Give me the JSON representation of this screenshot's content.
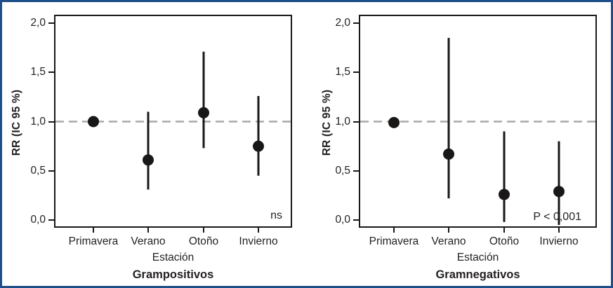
{
  "figure": {
    "border_color": "#1d4e89",
    "mark_color": "#1a1717",
    "refline_color": "#a8a8a8",
    "text_color": "#231f20"
  },
  "chart_data": [
    {
      "type": "scatter",
      "title": "Grampositivos",
      "xlabel": "Estación",
      "ylabel": "RR (IC 95 %)",
      "annotation": "ns",
      "categories": [
        "Primavera",
        "Verano",
        "Otoño",
        "Invierno"
      ],
      "series": [
        {
          "name": "RR",
          "values": [
            1.0,
            0.61,
            1.09,
            0.75
          ],
          "ci_low": [
            1.0,
            0.31,
            0.73,
            0.45
          ],
          "ci_high": [
            1.0,
            1.1,
            1.71,
            1.26
          ]
        }
      ],
      "reference_line": 1.0,
      "ylim": [
        -0.08,
        2.09
      ],
      "yticks": [
        2.0,
        1.5,
        1.0,
        0.5,
        0.0
      ],
      "ytick_labels": [
        "2,0",
        "1,5",
        "1,0",
        "0,5",
        "0,0"
      ],
      "grid": false,
      "legend": "none"
    },
    {
      "type": "scatter",
      "title": "Gramnegativos",
      "xlabel": "Estación",
      "ylabel": "RR (IC 95 %)",
      "annotation": "P < 0,001",
      "categories": [
        "Primavera",
        "Verano",
        "Otoño",
        "Invierno"
      ],
      "series": [
        {
          "name": "RR",
          "values": [
            0.99,
            0.67,
            0.26,
            0.29
          ],
          "ci_low": [
            0.99,
            0.22,
            -0.02,
            -0.05
          ],
          "ci_high": [
            0.99,
            1.85,
            0.9,
            0.8
          ]
        }
      ],
      "reference_line": 1.0,
      "ylim": [
        -0.08,
        2.09
      ],
      "yticks": [
        2.0,
        1.5,
        1.0,
        0.5,
        0.0
      ],
      "ytick_labels": [
        "2,0",
        "1,5",
        "1,0",
        "0,5",
        "0,0"
      ],
      "grid": false,
      "legend": "none"
    }
  ]
}
